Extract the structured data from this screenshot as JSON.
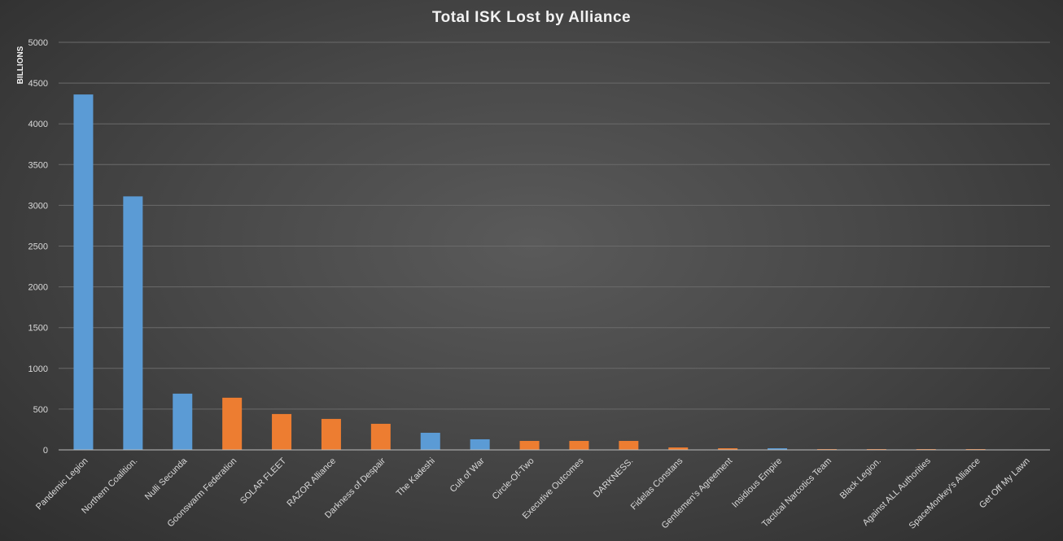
{
  "chart_data": {
    "type": "bar",
    "title": "Total ISK Lost by Alliance",
    "xlabel": "",
    "ylabel": "BILLIONS",
    "ylim": [
      0,
      5000
    ],
    "yticks": [
      0,
      500,
      1000,
      1500,
      2000,
      2500,
      3000,
      3500,
      4000,
      4500,
      5000
    ],
    "grid": true,
    "legend": "none",
    "colors": {
      "blue": "#5b9bd5",
      "orange": "#ed7d31",
      "background": "#4a4a4a"
    },
    "categories": [
      "Pandemic Legion",
      "Northern Coalition.",
      "Nulli Secunda",
      "Goonswarm Federation",
      "SOLAR FLEET",
      "RAZOR Alliance",
      "Darkness of Despair",
      "The Kadeshi",
      "Cult of War",
      "Circle-Of-Two",
      "Executive Outcomes",
      "DARKNESS.",
      "Fidelas Constans",
      "Gentlemen's Agreement",
      "Insidious Empire",
      "Tactical Narcotics Team",
      "Black Legion.",
      "Against ALL Authorities",
      "SpaceMonkey's Alliance",
      "Get Off My Lawn"
    ],
    "values": [
      4360,
      3110,
      690,
      640,
      440,
      380,
      320,
      210,
      130,
      110,
      110,
      110,
      30,
      20,
      20,
      10,
      10,
      10,
      10,
      5
    ],
    "bar_colors": [
      "blue",
      "blue",
      "blue",
      "orange",
      "orange",
      "orange",
      "orange",
      "blue",
      "blue",
      "orange",
      "orange",
      "orange",
      "orange",
      "orange",
      "blue",
      "orange",
      "orange",
      "orange",
      "orange",
      "orange"
    ]
  }
}
